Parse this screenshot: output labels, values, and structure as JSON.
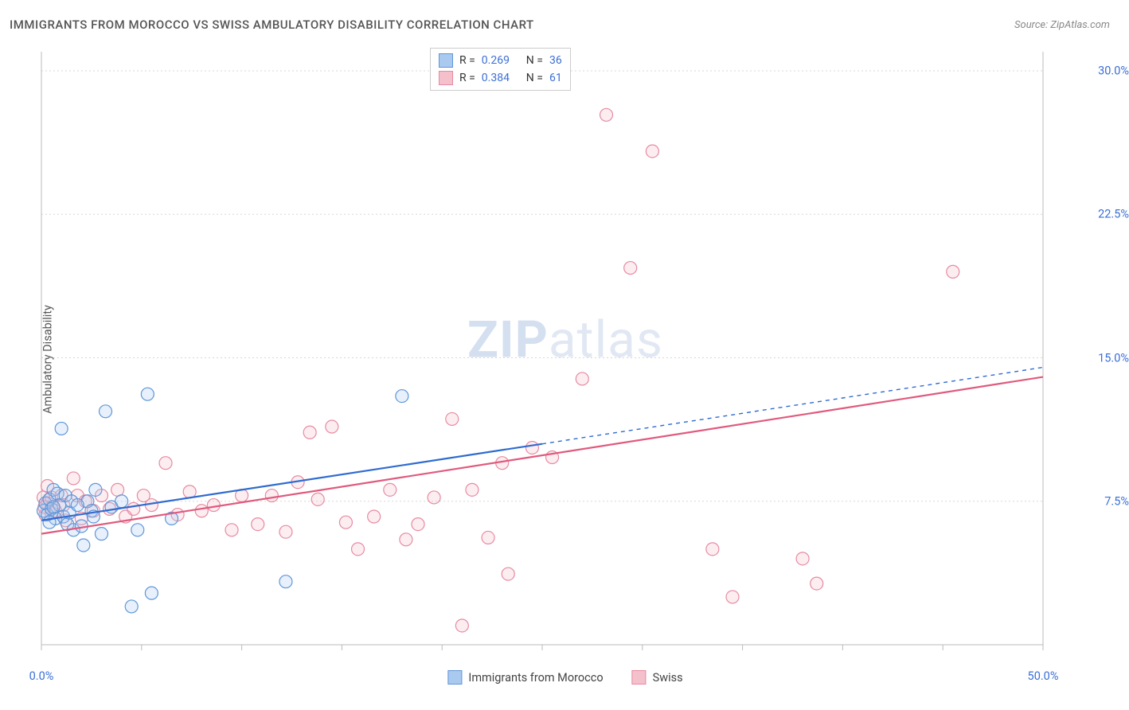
{
  "title": "IMMIGRANTS FROM MOROCCO VS SWISS AMBULATORY DISABILITY CORRELATION CHART",
  "source": "Source: ZipAtlas.com",
  "y_axis_label": "Ambulatory Disability",
  "watermark_bold": "ZIP",
  "watermark_light": "atlas",
  "chart": {
    "type": "scatter",
    "xlim": [
      0,
      50
    ],
    "ylim": [
      0,
      31
    ],
    "x_ticks": [
      0,
      5,
      10,
      15,
      20,
      25,
      30,
      35,
      40,
      45,
      50
    ],
    "x_tick_labels": {
      "0": "0.0%",
      "50": "50.0%"
    },
    "y_ticks": [
      7.5,
      15.0,
      22.5,
      30.0
    ],
    "y_tick_labels": [
      "7.5%",
      "15.0%",
      "22.5%",
      "30.0%"
    ],
    "grid_color": "#d7d7d7",
    "axis_color": "#bbbbbb",
    "background": "#ffffff",
    "point_radius": 8,
    "series": [
      {
        "name": "Immigrants from Morocco",
        "short": "morocco",
        "fill": "#a9c9ef",
        "stroke": "#5f97d9",
        "trend_color": "#2f6bd0",
        "R": "0.269",
        "N": "36",
        "trend": {
          "x1": 0,
          "y1": 6.5,
          "x2_solid": 25,
          "y2_solid": 10.5,
          "x2_dash": 50,
          "y2_dash": 14.5
        },
        "points": [
          [
            0.1,
            7.0
          ],
          [
            0.2,
            7.4
          ],
          [
            0.3,
            6.8
          ],
          [
            0.4,
            7.6
          ],
          [
            0.5,
            7.1
          ],
          [
            0.6,
            8.1
          ],
          [
            0.7,
            6.6
          ],
          [
            0.8,
            7.9
          ],
          [
            0.9,
            7.3
          ],
          [
            1.0,
            11.3
          ],
          [
            1.1,
            6.7
          ],
          [
            1.2,
            7.8
          ],
          [
            1.3,
            6.3
          ],
          [
            1.5,
            7.5
          ],
          [
            1.6,
            6.0
          ],
          [
            2.0,
            6.2
          ],
          [
            2.1,
            5.2
          ],
          [
            2.3,
            7.5
          ],
          [
            2.5,
            7.0
          ],
          [
            2.7,
            8.1
          ],
          [
            3.0,
            5.8
          ],
          [
            3.2,
            12.2
          ],
          [
            3.5,
            7.2
          ],
          [
            4.0,
            7.5
          ],
          [
            4.5,
            2.0
          ],
          [
            4.8,
            6.0
          ],
          [
            5.3,
            13.1
          ],
          [
            5.5,
            2.7
          ],
          [
            6.5,
            6.6
          ],
          [
            12.2,
            3.3
          ],
          [
            18.0,
            13.0
          ],
          [
            0.4,
            6.4
          ],
          [
            0.6,
            7.2
          ],
          [
            1.4,
            6.9
          ],
          [
            1.8,
            7.3
          ],
          [
            2.6,
            6.7
          ]
        ]
      },
      {
        "name": "Swiss",
        "short": "swiss",
        "fill": "#f4c0cb",
        "stroke": "#e78aa1",
        "trend_color": "#e05a7d",
        "R": "0.384",
        "N": "61",
        "trend": {
          "x1": 0,
          "y1": 5.8,
          "x2_solid": 50,
          "y2_solid": 14.0,
          "x2_dash": 50,
          "y2_dash": 14.0
        },
        "points": [
          [
            0.1,
            7.7
          ],
          [
            0.2,
            6.8
          ],
          [
            0.3,
            7.4
          ],
          [
            0.3,
            8.3
          ],
          [
            0.5,
            6.9
          ],
          [
            0.5,
            7.7
          ],
          [
            0.7,
            7.0
          ],
          [
            1.0,
            7.8
          ],
          [
            1.1,
            7.3
          ],
          [
            1.2,
            6.5
          ],
          [
            1.6,
            8.7
          ],
          [
            1.8,
            7.8
          ],
          [
            2.0,
            6.6
          ],
          [
            2.2,
            7.5
          ],
          [
            2.6,
            7.0
          ],
          [
            3.0,
            7.8
          ],
          [
            3.4,
            7.1
          ],
          [
            3.8,
            8.1
          ],
          [
            4.2,
            6.7
          ],
          [
            4.6,
            7.1
          ],
          [
            5.1,
            7.8
          ],
          [
            5.5,
            7.3
          ],
          [
            6.2,
            9.5
          ],
          [
            6.8,
            6.8
          ],
          [
            7.4,
            8.0
          ],
          [
            8.0,
            7.0
          ],
          [
            8.6,
            7.3
          ],
          [
            9.5,
            6.0
          ],
          [
            10.0,
            7.8
          ],
          [
            10.8,
            6.3
          ],
          [
            11.5,
            7.8
          ],
          [
            12.2,
            5.9
          ],
          [
            12.8,
            8.5
          ],
          [
            13.4,
            11.1
          ],
          [
            13.8,
            7.6
          ],
          [
            14.5,
            11.4
          ],
          [
            15.2,
            6.4
          ],
          [
            15.8,
            5.0
          ],
          [
            16.6,
            6.7
          ],
          [
            17.4,
            8.1
          ],
          [
            18.2,
            5.5
          ],
          [
            18.8,
            6.3
          ],
          [
            19.6,
            7.7
          ],
          [
            20.5,
            11.8
          ],
          [
            21.0,
            1.0
          ],
          [
            21.5,
            8.1
          ],
          [
            22.3,
            5.6
          ],
          [
            23.0,
            9.5
          ],
          [
            23.3,
            3.7
          ],
          [
            24.5,
            10.3
          ],
          [
            25.5,
            9.8
          ],
          [
            27.0,
            13.9
          ],
          [
            28.2,
            27.7
          ],
          [
            29.4,
            19.7
          ],
          [
            30.5,
            25.8
          ],
          [
            33.5,
            5.0
          ],
          [
            34.5,
            2.5
          ],
          [
            38.0,
            4.5
          ],
          [
            38.7,
            3.2
          ],
          [
            45.5,
            19.5
          ],
          [
            0.15,
            7.2
          ]
        ]
      }
    ]
  },
  "legend_top": {
    "R_label": "R =",
    "N_label": "N ="
  },
  "legend_bottom": [
    {
      "swatch_fill": "#a9c9ef",
      "swatch_stroke": "#5f97d9",
      "label": "Immigrants from Morocco"
    },
    {
      "swatch_fill": "#f4c0cb",
      "swatch_stroke": "#e78aa1",
      "label": "Swiss"
    }
  ]
}
